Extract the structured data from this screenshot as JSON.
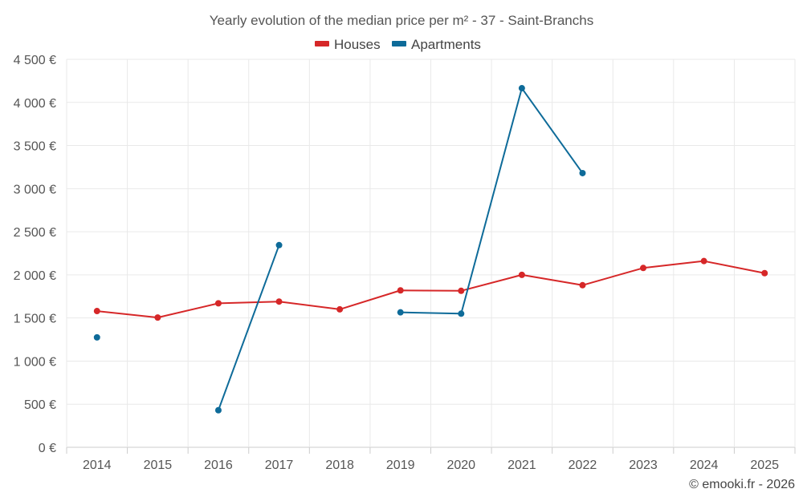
{
  "chart_data": {
    "type": "line",
    "title": "Yearly evolution of the median price per m² - 37 - Saint-Branchs",
    "categories": [
      "2014",
      "2015",
      "2016",
      "2017",
      "2018",
      "2019",
      "2020",
      "2021",
      "2022",
      "2023",
      "2024",
      "2025"
    ],
    "y_tick_labels": [
      "0 €",
      "500 €",
      "1 000 €",
      "1 500 €",
      "2 000 €",
      "2 500 €",
      "3 000 €",
      "3 500 €",
      "4 000 €",
      "4 500 €"
    ],
    "ylim": [
      0,
      4500
    ],
    "y_tick_step": 500,
    "grid": true,
    "legend_position": "top-center",
    "series": [
      {
        "name": "Houses",
        "color": "#d62728",
        "values": [
          1580,
          1505,
          1670,
          1690,
          1600,
          1820,
          1815,
          2000,
          1880,
          2080,
          2160,
          2020
        ]
      },
      {
        "name": "Apartments",
        "color": "#0e6b99",
        "values": [
          1275,
          null,
          430,
          2345,
          null,
          1565,
          1550,
          4165,
          3180,
          null,
          null,
          null
        ]
      }
    ]
  },
  "credit": "© emooki.fr - 2026"
}
